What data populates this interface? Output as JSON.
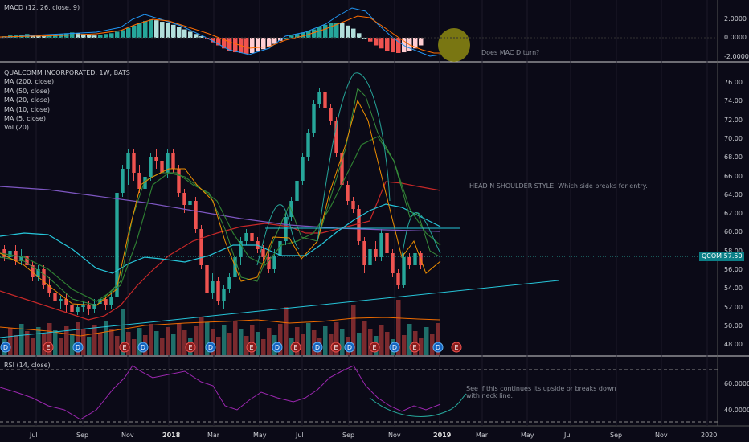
{
  "macd": {
    "label": "MACD (12, 26, close, 9)",
    "axis": [
      "2.0000",
      "0.0000",
      "-2.0000"
    ],
    "note": "Does MAC D turn?"
  },
  "main": {
    "legend": [
      "QUALCOMM INCORPORATED, 1W, BATS",
      "MA (200, close)",
      "MA (50, close)",
      "MA (20, close)",
      "MA (10, close)",
      "MA (5, close)",
      "Vol (20)"
    ],
    "price_axis": [
      "76.00",
      "74.00",
      "72.00",
      "70.00",
      "68.00",
      "66.00",
      "64.00",
      "62.00",
      "60.00",
      "58.00",
      "56.00",
      "54.00",
      "52.00",
      "50.00",
      "48.00"
    ],
    "price_tag_symbol": "QCOM",
    "price_tag_value": "57.50",
    "note": "HEAD N SHOULDER STYLE.  Which side breaks for entry.",
    "event_markers": [
      "D",
      "E",
      "D",
      "E",
      "D",
      "E",
      "D",
      "E",
      "D",
      "E",
      "D",
      "E",
      "D",
      "E",
      "D",
      "E",
      "D",
      "E"
    ]
  },
  "rsi": {
    "label": "RSI (14, close)",
    "axis": [
      "60.0000",
      "40.0000"
    ],
    "note_line1": "See if this continues its upside or breaks down",
    "note_line2": "with neck line."
  },
  "time_axis": [
    "Jul",
    "Sep",
    "Nov",
    "2018",
    "Mar",
    "May",
    "Jul",
    "Sep",
    "Nov",
    "2019",
    "Mar",
    "May",
    "Jul",
    "Sep",
    "Nov",
    "2020"
  ],
  "colors": {
    "up": "#26a69a",
    "down": "#ef5350",
    "background": "#0b0a17",
    "ma200": "#c62828",
    "ma50": "#26c6da",
    "ma20": "#7e57c2",
    "ma10": "#2e7d32",
    "ma5": "#ef8f00",
    "rsi": "#9c27b0"
  }
}
